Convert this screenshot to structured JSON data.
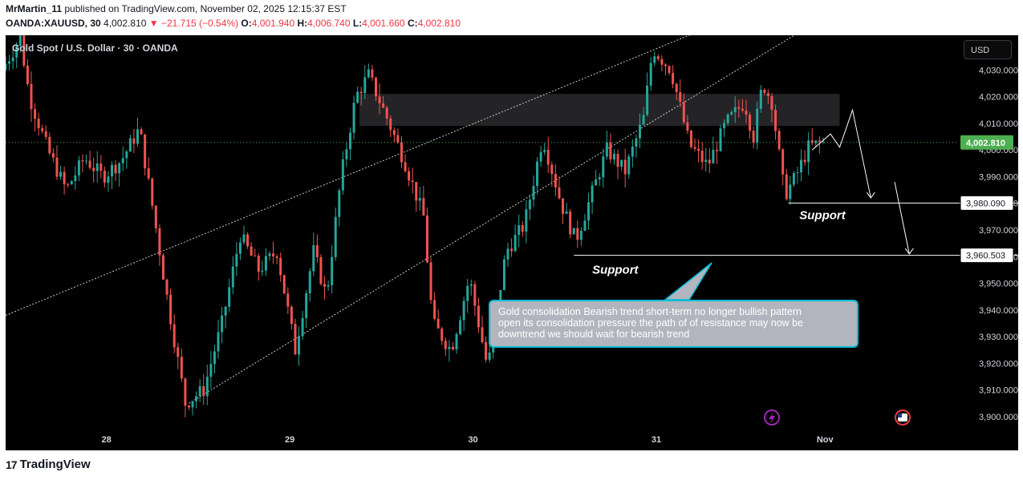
{
  "header": {
    "user": "MrMartin_11",
    "published": "published on TradingView.com, November 02, 2025 12:15:37 EST",
    "symbol_line": "OANDA:XAUUSD, 30",
    "last": "4,002.810",
    "change": "▼ −21.715 (−0.54%)",
    "o_label": "O:",
    "o_val": "4,001.940",
    "h_label": "H:",
    "h_val": "4,006.740",
    "l_label": "L:",
    "l_val": "4,001.660",
    "c_label": "C:",
    "c_val": "4,002.810"
  },
  "chart_title": "Gold Spot / U.S. Dollar · 30 · OANDA",
  "currency_button": "USD",
  "note": {
    "line1": "Gold consolidation Bearish trend short-term no longer bullish pattern",
    "line2": " open its consolidation pressure the path of of resistance may now be",
    "line3": "downtrend we should wait for bearish trend"
  },
  "footer": {
    "brand": "TradingView"
  },
  "chart_data": {
    "type": "candlestick",
    "title": "Gold Spot / U.S. Dollar · 30 · OANDA",
    "x_ticks": [
      "28",
      "29",
      "30",
      "31",
      "Nov"
    ],
    "y_ticks": [
      3900,
      3910,
      3920,
      3930,
      3940,
      3950,
      3960,
      3970,
      3980,
      3990,
      4000,
      4010,
      4020,
      4030
    ],
    "y_tick_labels": [
      "3,900.000",
      "3,910.000",
      "3,920.000",
      "3,930.000",
      "3,940.000",
      "3,950.000",
      "3,960.000",
      "3,970.000",
      "3,980.000",
      "3,990.000",
      "4,000.000",
      "4,010.000",
      "4,020.000",
      "4,030.000"
    ],
    "ylim": [
      3894,
      4043
    ],
    "xlim": [
      27.45,
      32.65
    ],
    "last_price": 4002.81,
    "last_price_label": "4,002.810",
    "colors": {
      "up": "#26a69a",
      "down": "#ef5350",
      "last": "#4caf50",
      "background": "#000000"
    },
    "resistance_zone": {
      "x_start": 29.38,
      "x_end": 32.0,
      "y_low": 4009,
      "y_high": 4021
    },
    "support_levels": [
      {
        "value": 3980.09,
        "label": "3,980.090",
        "text": "Support",
        "x_start": 31.72
      },
      {
        "value": 3960.503,
        "label": "3,960.503",
        "text": "Support",
        "x_start": 30.55
      }
    ],
    "trendlines": [
      {
        "x1": 27.45,
        "y1": 3938,
        "x2": 31.25,
        "y2": 4045
      },
      {
        "x1": 28.45,
        "y1": 3905,
        "x2": 31.8,
        "y2": 4045
      }
    ],
    "projection_path": [
      [
        31.85,
        4000
      ],
      [
        31.95,
        4006
      ],
      [
        32.0,
        4001
      ],
      [
        32.07,
        4015
      ],
      [
        32.17,
        3982
      ]
    ],
    "projection_path_2": [
      [
        32.3,
        3988
      ],
      [
        32.38,
        3961
      ]
    ],
    "price_path": [
      [
        27.45,
        4030
      ],
      [
        27.55,
        4042
      ],
      [
        27.6,
        4020
      ],
      [
        27.7,
        4000
      ],
      [
        27.8,
        3985
      ],
      [
        27.9,
        3997
      ],
      [
        28.0,
        3990
      ],
      [
        28.1,
        3996
      ],
      [
        28.2,
        4008
      ],
      [
        28.28,
        3975
      ],
      [
        28.35,
        3945
      ],
      [
        28.45,
        3905
      ],
      [
        28.55,
        3910
      ],
      [
        28.65,
        3935
      ],
      [
        28.75,
        3968
      ],
      [
        28.85,
        3955
      ],
      [
        28.95,
        3962
      ],
      [
        29.05,
        3925
      ],
      [
        29.15,
        3962
      ],
      [
        29.22,
        3945
      ],
      [
        29.3,
        3990
      ],
      [
        29.38,
        4020
      ],
      [
        29.45,
        4028
      ],
      [
        29.55,
        4012
      ],
      [
        29.65,
        3995
      ],
      [
        29.75,
        3975
      ],
      [
        29.8,
        3935
      ],
      [
        29.9,
        3925
      ],
      [
        30.0,
        3952
      ],
      [
        30.1,
        3918
      ],
      [
        30.2,
        3962
      ],
      [
        30.3,
        3972
      ],
      [
        30.4,
        4005
      ],
      [
        30.5,
        3980
      ],
      [
        30.58,
        3966
      ],
      [
        30.65,
        3980
      ],
      [
        30.75,
        4000
      ],
      [
        30.85,
        3992
      ],
      [
        30.95,
        4012
      ],
      [
        31.0,
        4038
      ],
      [
        31.1,
        4030
      ],
      [
        31.2,
        4002
      ],
      [
        31.3,
        3994
      ],
      [
        31.4,
        4010
      ],
      [
        31.5,
        4018
      ],
      [
        31.55,
        4005
      ],
      [
        31.6,
        4025
      ],
      [
        31.65,
        4018
      ],
      [
        31.72,
        3983
      ],
      [
        31.78,
        3990
      ],
      [
        31.85,
        4001
      ],
      [
        31.92,
        4002.81
      ]
    ]
  }
}
